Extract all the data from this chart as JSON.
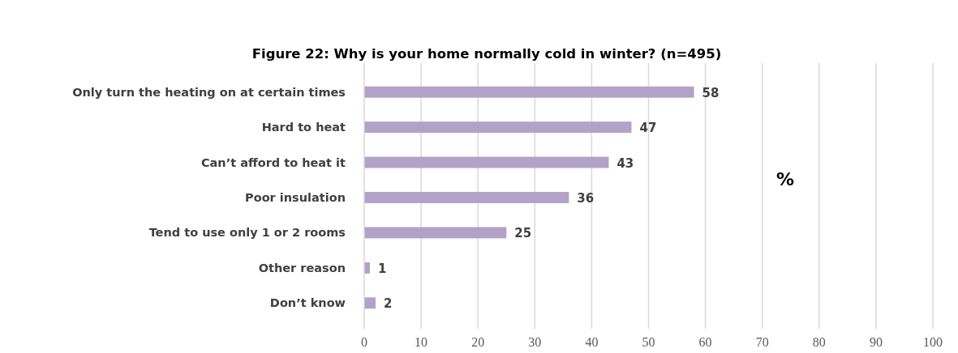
{
  "chart_data": {
    "type": "bar",
    "orientation": "horizontal",
    "title": "Figure 22: Why is your home normally cold in winter? (n=495)",
    "xlabel": "%",
    "categories": [
      "Only turn the heating on at certain times",
      "Hard to heat",
      "Can’t afford to heat it",
      "Poor insulation",
      "Tend to use only 1 or 2 rooms",
      "Other reason",
      "Don’t know"
    ],
    "values": [
      58,
      47,
      43,
      36,
      25,
      1,
      2
    ],
    "color": "#b3a2c7",
    "data_labels": true,
    "xlim": [
      0,
      100
    ],
    "xticks": [
      0,
      10,
      20,
      30,
      40,
      50,
      60,
      70,
      80,
      90,
      100
    ],
    "grid": "x"
  }
}
